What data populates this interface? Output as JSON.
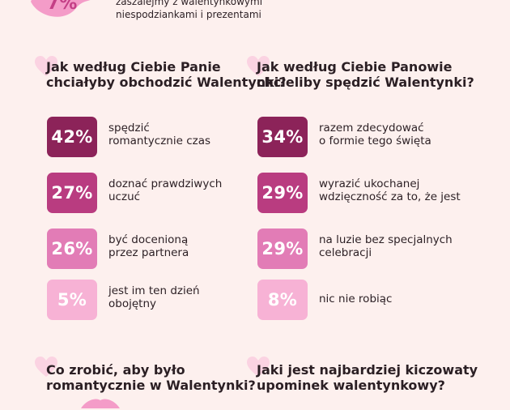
{
  "top": {
    "percent_fragment": "7%",
    "note_lines": [
      "zaszalejmy z walentynkowymi",
      "niespodziankami i prezentami"
    ]
  },
  "colors": {
    "background": "#fdf0ee",
    "heart": "#fbd3e2",
    "shade_1": "#8c2359",
    "shade_2": "#b93c80",
    "shade_3": "#e27cb6",
    "shade_4": "#f7b2d5"
  },
  "sections": {
    "women": {
      "title": "Jak według Ciebie Panie\nchciałyby obchodzić Walentynki?",
      "items": [
        {
          "value": "42%",
          "label": "spędzić\nromantycznie czas"
        },
        {
          "value": "27%",
          "label": "doznać prawdziwych\nuczuć"
        },
        {
          "value": "26%",
          "label": "być docenioną\nprzez partnera"
        },
        {
          "value": "5%",
          "label": "jest im ten dzień\nobojętny"
        }
      ]
    },
    "men": {
      "title": "Jak według Ciebie Panowie\nchcieliby spędzić Walentynki?",
      "items": [
        {
          "value": "34%",
          "label": "razem zdecydować\no formie tego święta"
        },
        {
          "value": "29%",
          "label": "wyrazić ukochanej\nwdzięczność za to, że jest"
        },
        {
          "value": "29%",
          "label": "na luzie bez specjalnych\ncelebracji"
        },
        {
          "value": "8%",
          "label": "nic nie robiąc"
        }
      ]
    },
    "romantic": {
      "title": "Co zrobić, aby było\nromantycznie w Walentynki?"
    },
    "kitsch": {
      "title": "Jaki jest najbardziej kiczowaty\nupominek walentynkowy?"
    }
  }
}
